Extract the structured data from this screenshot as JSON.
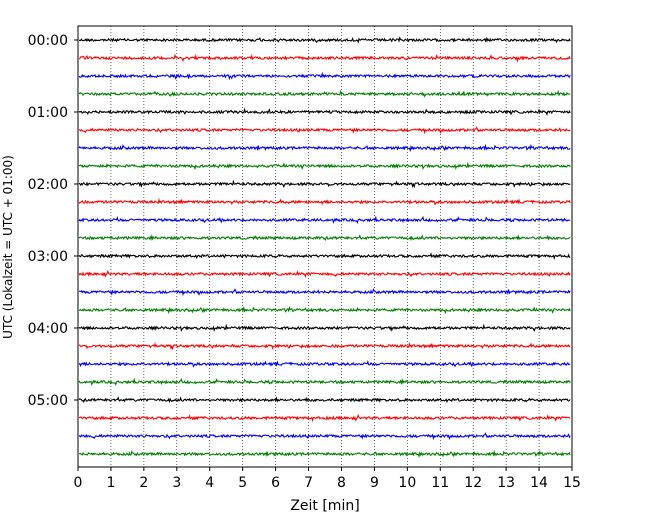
{
  "chart_data": {
    "type": "line",
    "title": "",
    "xlabel": "Zeit  [min]",
    "ylabel": "UTC (Lokalzeit = UTC + 01:00)",
    "xlim": [
      0,
      15
    ],
    "x_ticks": [
      "0",
      "1",
      "2",
      "3",
      "4",
      "5",
      "6",
      "7",
      "8",
      "9",
      "10",
      "11",
      "12",
      "13",
      "14",
      "15"
    ],
    "y_tick_labels": [
      "00:00",
      "01:00",
      "02:00",
      "03:00",
      "04:00",
      "05:00"
    ],
    "trace_interval_minutes": 15,
    "trace_count": 24,
    "trace_color_cycle": [
      "#000000",
      "#ff0000",
      "#0000ff",
      "#008000"
    ],
    "grid": "vertical dotted at each minute",
    "legend": "none"
  }
}
